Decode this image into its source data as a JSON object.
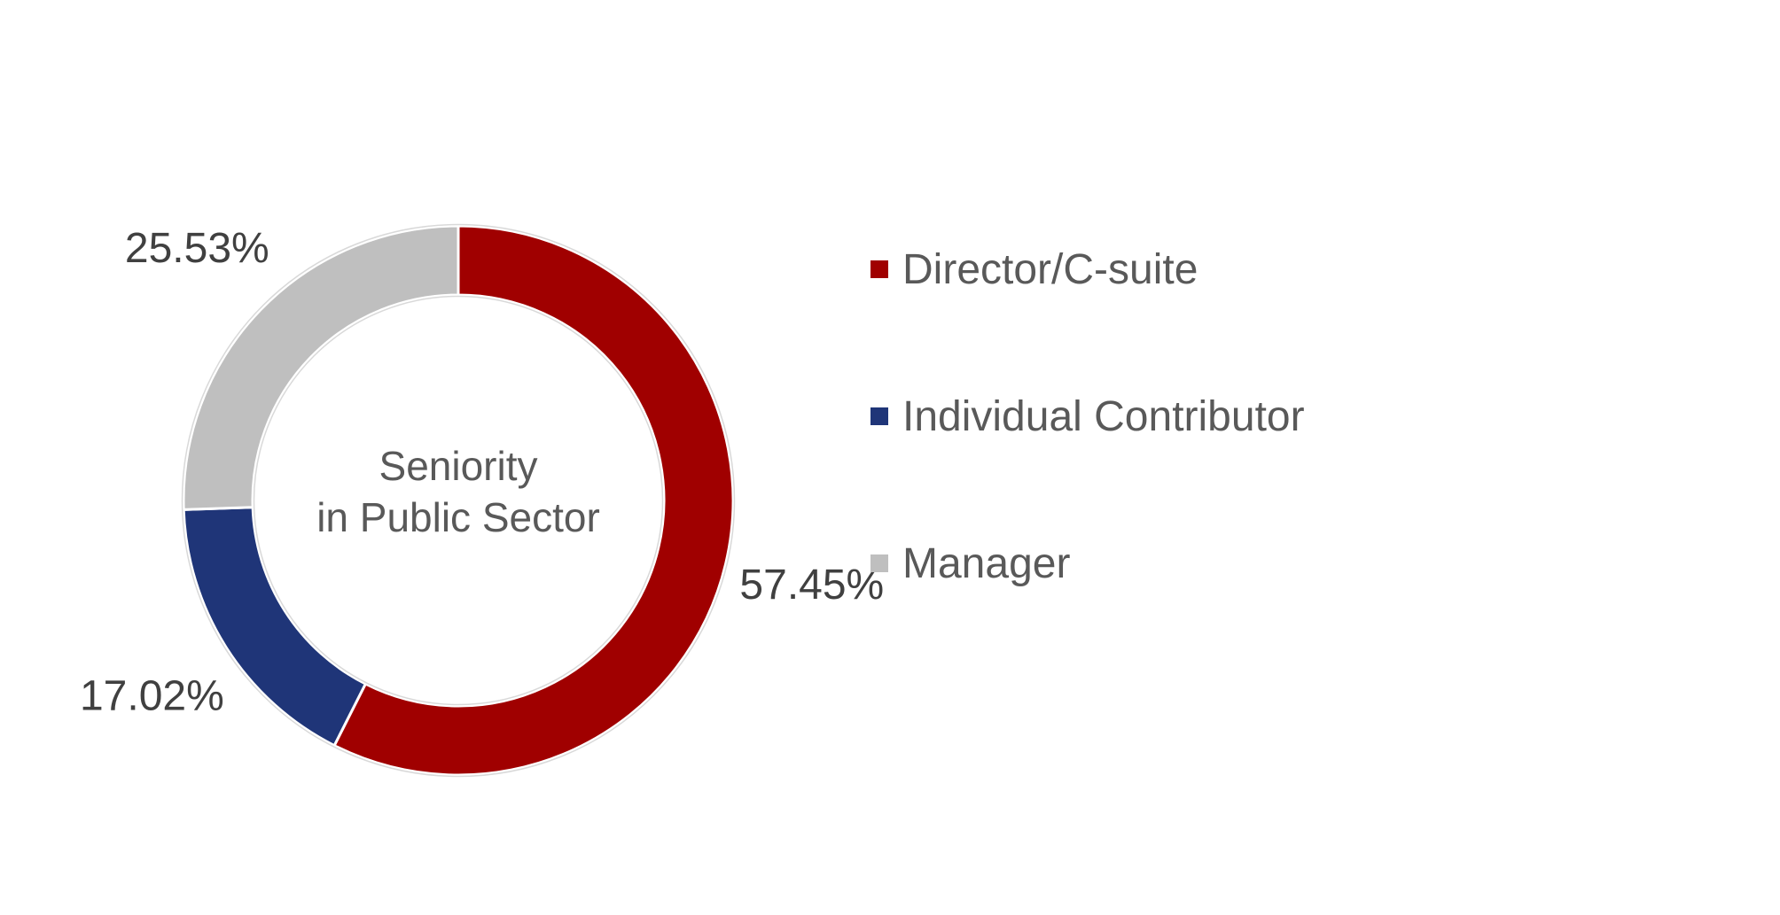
{
  "chart_data": {
    "type": "pie",
    "style": "donut",
    "center_label": [
      "Seniority",
      "in Public Sector"
    ],
    "categories": [
      "Director/C-suite",
      "Individual Contributor",
      "Manager"
    ],
    "values": [
      57.45,
      17.02,
      25.53
    ],
    "value_labels": [
      "57.45%",
      "17.02%",
      "25.53%"
    ],
    "colors": [
      "#A00000",
      "#1F3578",
      "#BFBFBF"
    ],
    "legend_position": "right"
  },
  "legend": {
    "items": [
      {
        "label": "Director/C-suite",
        "color": "#A00000"
      },
      {
        "label": "Individual Contributor",
        "color": "#1F3578"
      },
      {
        "label": "Manager",
        "color": "#BFBFBF"
      }
    ]
  }
}
